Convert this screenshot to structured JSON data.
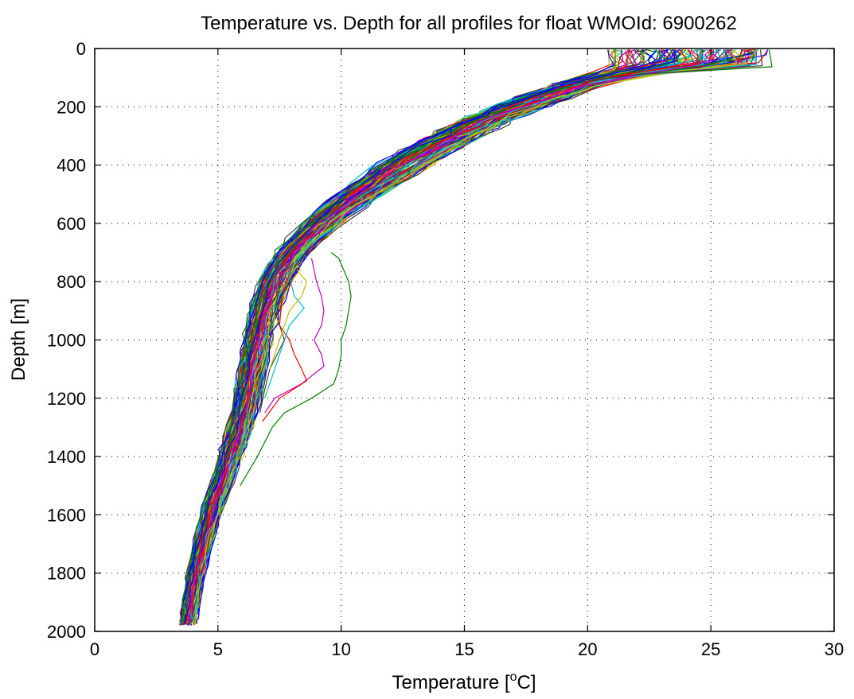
{
  "chart_data": {
    "type": "line",
    "title": "Temperature vs. Depth for all profiles for float WMOId: 6900262",
    "xlabel_main": "Temperature [",
    "xlabel_sup": "o",
    "xlabel_tail": "C]",
    "ylabel": "Depth [m]",
    "xlim": [
      0,
      30
    ],
    "ylim": [
      0,
      2000
    ],
    "y_reversed": true,
    "grid": true,
    "x_ticks": [
      "0",
      "5",
      "10",
      "15",
      "20",
      "25",
      "30"
    ],
    "y_ticks": [
      "0",
      "200",
      "400",
      "600",
      "800",
      "1000",
      "1200",
      "1400",
      "1600",
      "1800",
      "2000"
    ],
    "series_colors": [
      "#0000ff",
      "#008000",
      "#ff0000",
      "#00bfbf",
      "#bf00bf",
      "#bfbf00",
      "#404040"
    ],
    "profile_count": 120,
    "envelope": {
      "depth": [
        0,
        50,
        100,
        150,
        200,
        250,
        300,
        400,
        500,
        600,
        700,
        800,
        900,
        1000,
        1100,
        1200,
        1300,
        1400,
        1500,
        1600,
        1700,
        1800,
        1900,
        1975
      ],
      "temperature": [
        25.0,
        23.5,
        20.5,
        18.8,
        17.2,
        15.8,
        14.6,
        12.5,
        10.8,
        9.2,
        8.0,
        7.3,
        6.9,
        6.6,
        6.4,
        6.2,
        5.9,
        5.5,
        5.1,
        4.7,
        4.4,
        4.1,
        3.9,
        3.8
      ]
    },
    "anomalous_profiles": [
      {
        "color": "#008000",
        "depth": [
          700,
          720,
          760,
          800,
          850,
          900,
          950,
          1000,
          1050,
          1100,
          1150,
          1200,
          1250,
          1300,
          1350,
          1400,
          1500
        ],
        "temperature": [
          9.6,
          9.9,
          10.1,
          10.3,
          10.4,
          10.3,
          10.2,
          10.0,
          10.0,
          9.9,
          9.7,
          8.8,
          7.7,
          7.2,
          6.9,
          6.6,
          5.9
        ]
      },
      {
        "color": "#bf00bf",
        "depth": [
          720,
          800,
          850,
          900,
          950,
          1000,
          1050,
          1090,
          1150,
          1200,
          1250
        ],
        "temperature": [
          8.8,
          9.0,
          9.2,
          9.3,
          9.2,
          8.9,
          9.2,
          9.3,
          8.4,
          7.3,
          6.9
        ]
      },
      {
        "color": "#ff0000",
        "depth": [
          750,
          850,
          950,
          1000,
          1050,
          1100,
          1140,
          1200,
          1280
        ],
        "temperature": [
          8.0,
          7.6,
          7.5,
          7.9,
          8.1,
          8.4,
          8.6,
          7.5,
          6.8
        ]
      },
      {
        "color": "#00bfbf",
        "depth": [
          780,
          850,
          890,
          950,
          1000,
          1100,
          1200
        ],
        "temperature": [
          7.9,
          8.1,
          8.5,
          7.9,
          7.7,
          7.3,
          6.9
        ]
      },
      {
        "color": "#404040",
        "depth": [
          780,
          900,
          1000,
          1100,
          1170,
          1250
        ],
        "temperature": [
          7.6,
          7.3,
          7.7,
          7.1,
          6.9,
          6.7
        ]
      },
      {
        "color": "#bfbf00",
        "depth": [
          760,
          800,
          850,
          900,
          1000,
          1100
        ],
        "temperature": [
          8.2,
          8.6,
          8.4,
          7.9,
          7.5,
          7.1
        ]
      }
    ]
  }
}
